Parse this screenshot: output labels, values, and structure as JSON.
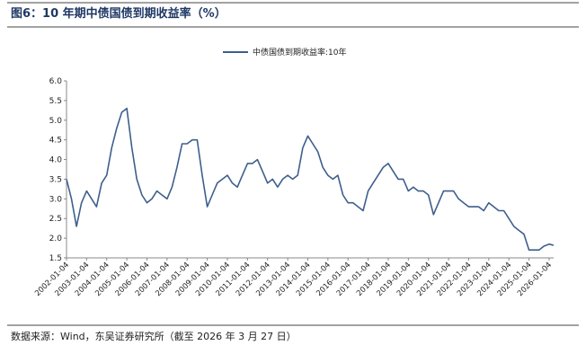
{
  "chart_data": {
    "type": "line",
    "title": "图6：10 年期中债国债到期收益率（%）",
    "source": "数据来源：Wind，东吴证券研究所（截至 2026 年 3 月 27 日）",
    "x": [
      "2002-01-04",
      "2002-04-04",
      "2002-07-04",
      "2002-10-04",
      "2003-01-04",
      "2003-04-04",
      "2003-07-04",
      "2003-10-04",
      "2004-01-04",
      "2004-04-04",
      "2004-07-04",
      "2004-10-04",
      "2005-01-04",
      "2005-04-04",
      "2005-07-04",
      "2005-10-04",
      "2006-01-04",
      "2006-04-04",
      "2006-07-04",
      "2006-10-04",
      "2007-01-04",
      "2007-04-04",
      "2007-07-04",
      "2007-10-04",
      "2008-01-04",
      "2008-04-04",
      "2008-07-04",
      "2008-10-04",
      "2009-01-04",
      "2009-04-04",
      "2009-07-04",
      "2009-10-04",
      "2010-01-04",
      "2010-04-04",
      "2010-07-04",
      "2010-10-04",
      "2011-01-04",
      "2011-04-04",
      "2011-07-04",
      "2011-10-04",
      "2012-01-04",
      "2012-04-04",
      "2012-07-04",
      "2012-10-04",
      "2013-01-04",
      "2013-04-04",
      "2013-07-04",
      "2013-10-04",
      "2014-01-04",
      "2014-04-04",
      "2014-07-04",
      "2014-10-04",
      "2015-01-04",
      "2015-04-04",
      "2015-07-04",
      "2015-10-04",
      "2016-01-04",
      "2016-04-04",
      "2016-07-04",
      "2016-10-04",
      "2017-01-04",
      "2017-04-04",
      "2017-07-04",
      "2017-10-04",
      "2018-01-04",
      "2018-04-04",
      "2018-07-04",
      "2018-10-04",
      "2019-01-04",
      "2019-04-04",
      "2019-07-04",
      "2019-10-04",
      "2020-01-04",
      "2020-04-04",
      "2020-07-04",
      "2020-10-04",
      "2021-01-04",
      "2021-04-04",
      "2021-07-04",
      "2021-10-04",
      "2022-01-04",
      "2022-04-04",
      "2022-07-04",
      "2022-10-04",
      "2023-01-04",
      "2023-04-04",
      "2023-07-04",
      "2023-10-04",
      "2024-01-04",
      "2024-04-04",
      "2024-07-04",
      "2024-10-04",
      "2025-01-04",
      "2025-04-04",
      "2025-07-04",
      "2025-10-04",
      "2026-01-04",
      "2026-03-27"
    ],
    "series": [
      {
        "name": "中债国债到期收益率:10年",
        "color": "#3e5f8c",
        "values": [
          3.5,
          3.0,
          2.3,
          2.9,
          3.2,
          3.0,
          2.8,
          3.4,
          3.6,
          4.3,
          4.8,
          5.2,
          5.3,
          4.3,
          3.5,
          3.1,
          2.9,
          3.0,
          3.2,
          3.1,
          3.0,
          3.3,
          3.8,
          4.4,
          4.4,
          4.5,
          4.5,
          3.6,
          2.8,
          3.1,
          3.4,
          3.5,
          3.6,
          3.4,
          3.3,
          3.6,
          3.9,
          3.9,
          4.0,
          3.7,
          3.4,
          3.5,
          3.3,
          3.5,
          3.6,
          3.5,
          3.6,
          4.3,
          4.6,
          4.4,
          4.2,
          3.8,
          3.6,
          3.5,
          3.6,
          3.1,
          2.9,
          2.9,
          2.8,
          2.7,
          3.2,
          3.4,
          3.6,
          3.8,
          3.9,
          3.7,
          3.5,
          3.5,
          3.2,
          3.3,
          3.2,
          3.2,
          3.1,
          2.6,
          2.9,
          3.2,
          3.2,
          3.2,
          3.0,
          2.9,
          2.8,
          2.8,
          2.8,
          2.7,
          2.9,
          2.8,
          2.7,
          2.7,
          2.5,
          2.3,
          2.2,
          2.1,
          1.7,
          1.7,
          1.7,
          1.8,
          1.85,
          1.82
        ]
      }
    ],
    "xlim": [
      "2002-01-04",
      "2026-03-27"
    ],
    "xticks": [
      "2002-01-04",
      "2003-01-04",
      "2004-01-04",
      "2005-01-04",
      "2006-01-04",
      "2007-01-04",
      "2008-01-04",
      "2009-01-04",
      "2010-01-04",
      "2011-01-04",
      "2012-01-04",
      "2013-01-04",
      "2014-01-04",
      "2015-01-04",
      "2016-01-04",
      "2017-01-04",
      "2018-01-04",
      "2019-01-04",
      "2020-01-04",
      "2021-01-04",
      "2022-01-04",
      "2023-01-04",
      "2024-01-04",
      "2025-01-04",
      "2026-01-04"
    ],
    "ylim": [
      1.5,
      6.0
    ],
    "yticks": [
      1.5,
      {
        "value": 2,
        "label": "2.0"
      },
      2.5,
      {
        "value": 3,
        "label": "3.0"
      },
      3.5,
      {
        "value": 4,
        "label": "4.0"
      },
      4.5,
      {
        "value": 5,
        "label": "5.0"
      },
      5.5,
      {
        "value": 6,
        "label": "6.0"
      }
    ],
    "legend": "top"
  }
}
